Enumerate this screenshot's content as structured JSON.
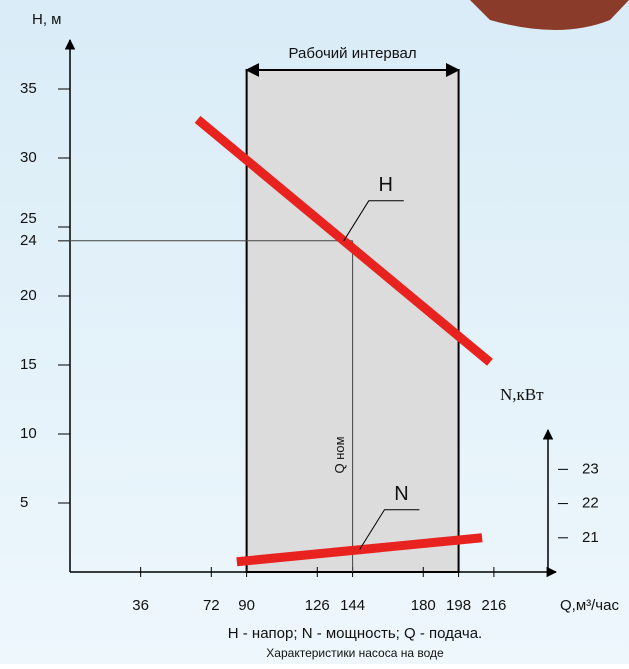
{
  "chart_data": {
    "type": "line",
    "y_label": "H, м",
    "y2_label": "N,кВт",
    "x_label": "Q,м³/час",
    "xlim": [
      0,
      240
    ],
    "xticks": [
      36,
      72,
      90,
      126,
      144,
      180,
      198,
      216
    ],
    "ylim": [
      0,
      37
    ],
    "yticks": [
      5,
      10,
      15,
      20,
      24,
      25,
      30,
      35
    ],
    "y2lim": [
      20,
      23.8
    ],
    "y2ticks": [
      21,
      22,
      23
    ],
    "working_interval": {
      "label": "Рабочий интервал",
      "range": [
        90,
        198
      ]
    },
    "nominal": {
      "label": "Q ном",
      "x": 144,
      "y": 24
    },
    "series": [
      {
        "name": "H",
        "color": "#e8231f",
        "x": [
          65,
          214
        ],
        "values": [
          32.8,
          15.2
        ]
      },
      {
        "name": "N",
        "color": "#e8231f",
        "axis": "y2",
        "x": [
          85,
          210
        ],
        "values": [
          20.3,
          21.0
        ]
      }
    ],
    "legend_note": "H - напор; N - мощность; Q - подача.",
    "caption": "Характеристики насоса на воде"
  }
}
